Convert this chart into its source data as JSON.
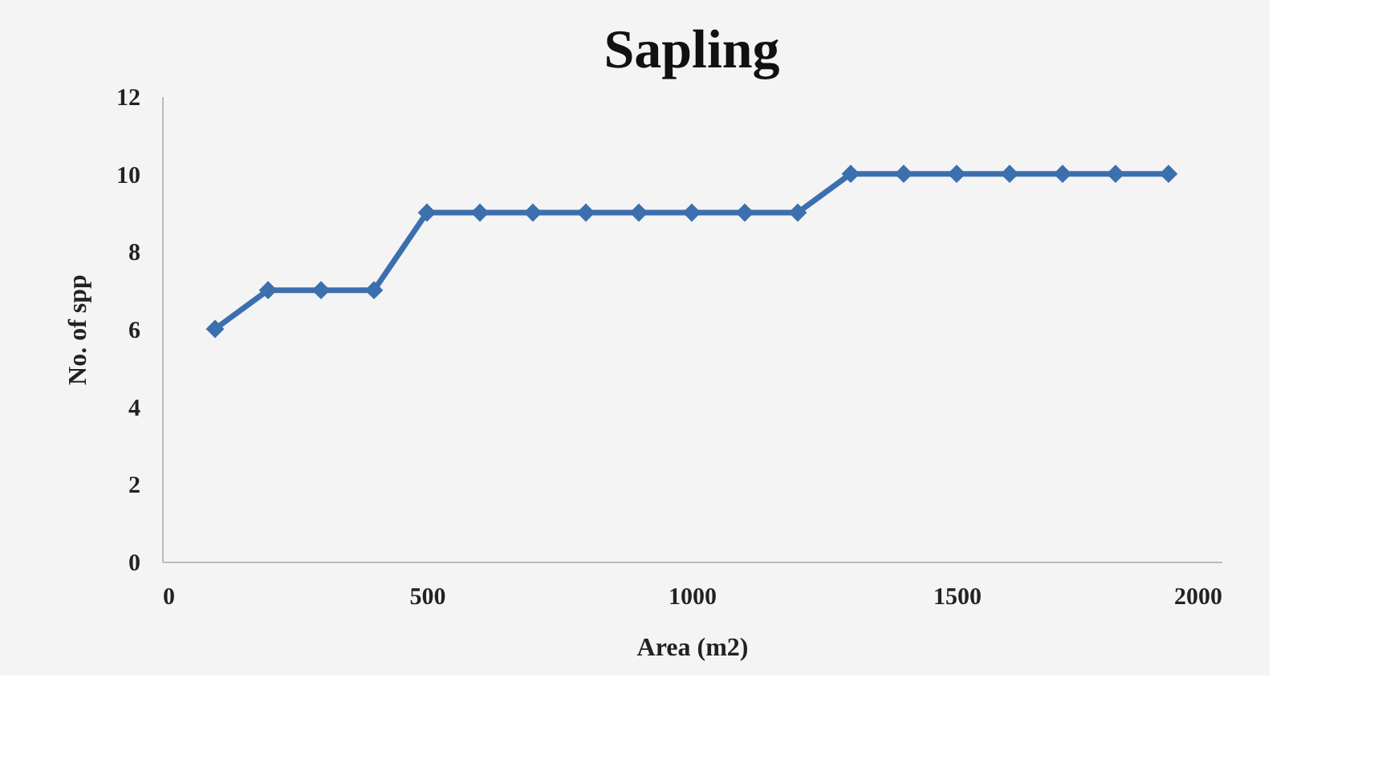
{
  "chart_data": {
    "type": "line",
    "title": "Sapling",
    "xlabel": "Area (m2)",
    "ylabel": "No. of spp",
    "x": [
      100,
      200,
      300,
      400,
      500,
      600,
      700,
      800,
      900,
      1000,
      1100,
      1200,
      1300,
      1400,
      1500,
      1600,
      1700,
      1800,
      1900
    ],
    "series": [
      {
        "color": "#3c6fae",
        "values": [
          6,
          7,
          7,
          7,
          9,
          9,
          9,
          9,
          9,
          9,
          9,
          9,
          10,
          10,
          10,
          10,
          10,
          10,
          10
        ]
      }
    ],
    "xlim": [
      0,
      2000
    ],
    "xticks": [
      0,
      500,
      1000,
      1500,
      2000
    ],
    "ylim": [
      0,
      12
    ],
    "yticks": [
      0,
      2,
      4,
      6,
      8,
      10,
      12
    ],
    "grid": false,
    "legend": false,
    "marker": "diamond",
    "line_style": "solid"
  }
}
